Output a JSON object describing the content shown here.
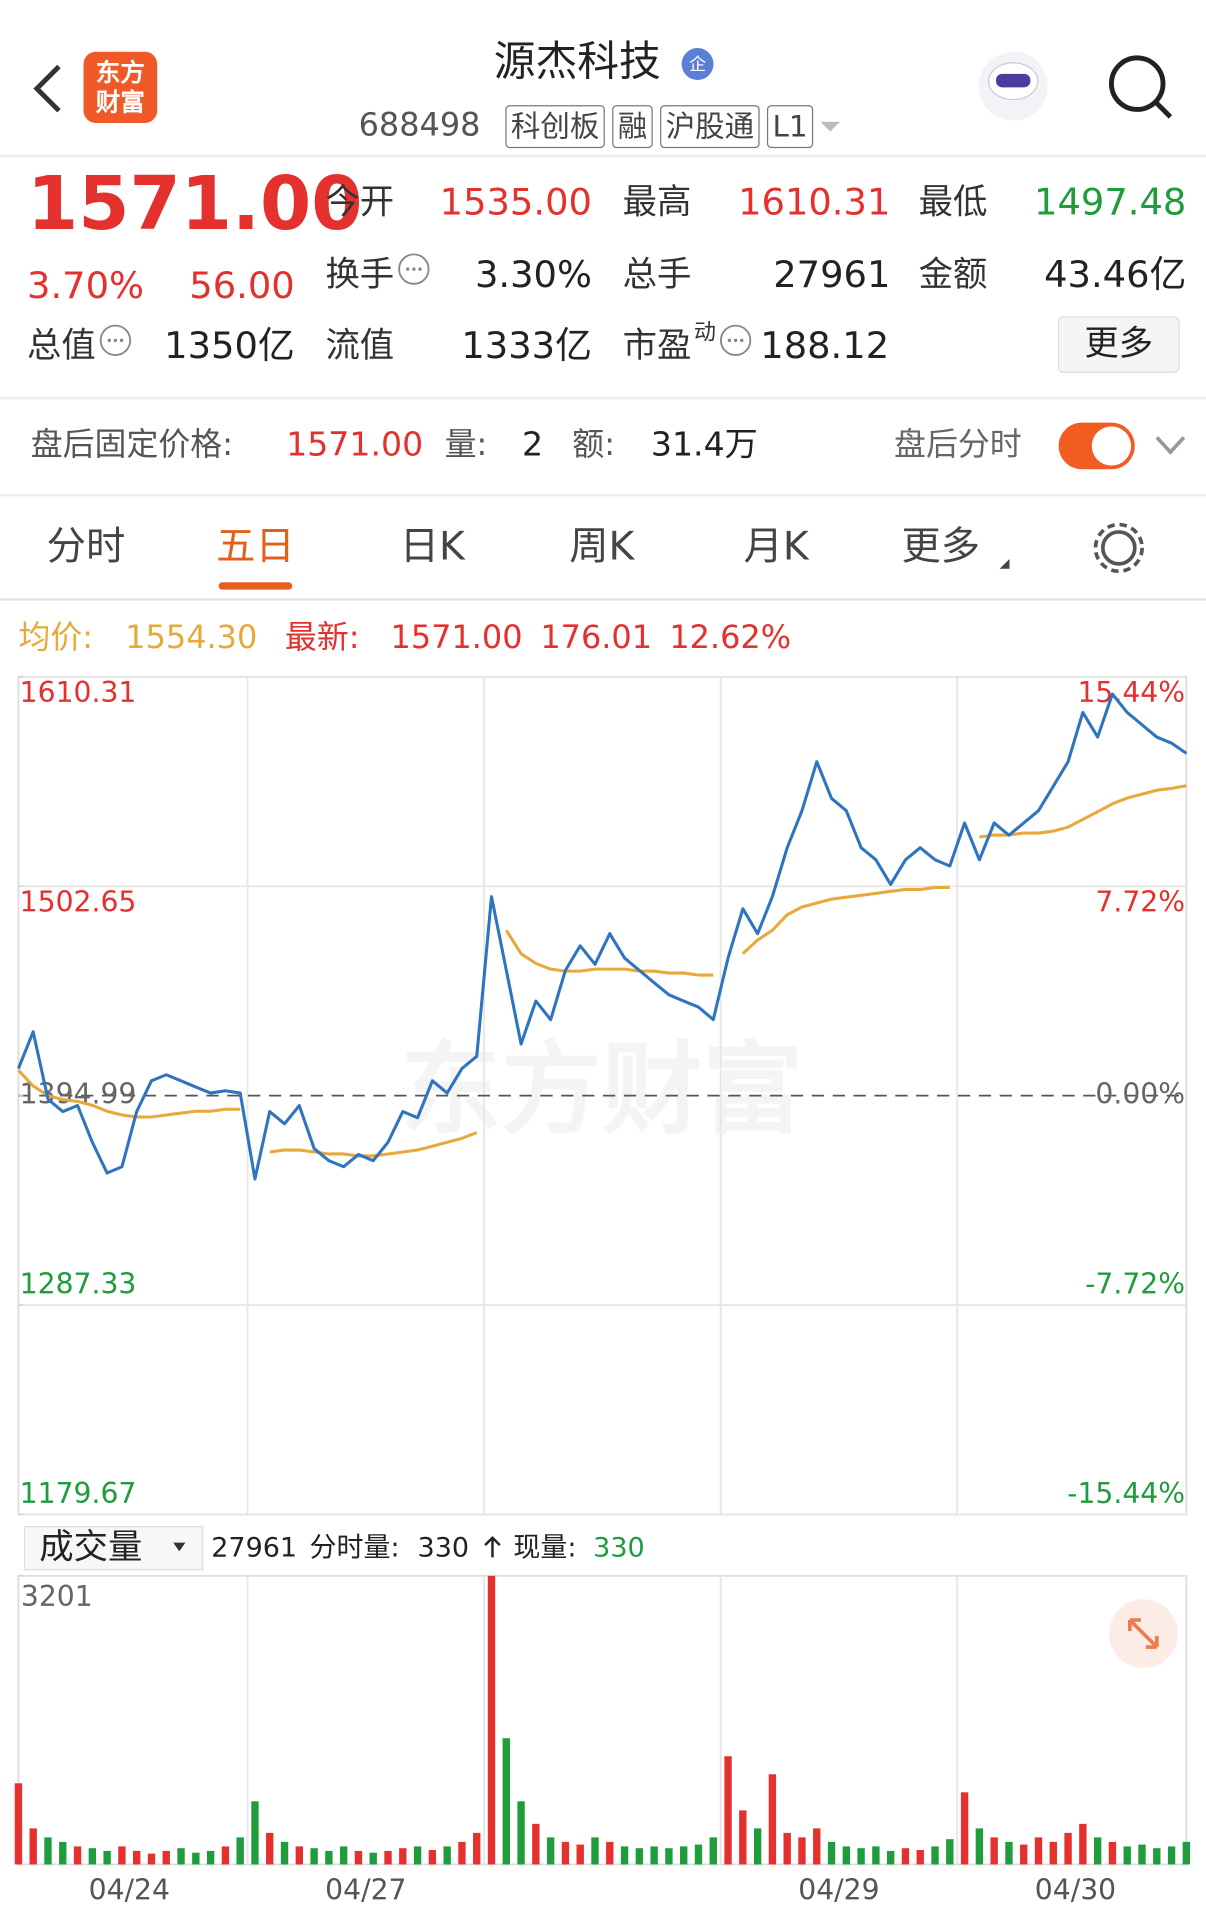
{
  "header": {
    "logo": [
      "东方",
      "财富"
    ],
    "name": "源杰科技",
    "badge": "企",
    "code": "688498",
    "tags": [
      "科创板",
      "融",
      "沪股通",
      "L1"
    ]
  },
  "quote": {
    "price": "1571.00",
    "change_pct": "3.70%",
    "change": "56.00",
    "more": "更多",
    "stats": [
      {
        "label": "今开",
        "value": "1535.00",
        "color": "#e4312e"
      },
      {
        "label": "最高",
        "value": "1610.31",
        "color": "#e4312e"
      },
      {
        "label": "最低",
        "value": "1497.48",
        "color": "#1f9c3c"
      },
      {
        "label": "换手",
        "value": "3.30%",
        "color": "#222",
        "info": true
      },
      {
        "label": "总手",
        "value": "27961",
        "color": "#222"
      },
      {
        "label": "金额",
        "value": "43.46亿",
        "color": "#222"
      },
      {
        "label": "总值",
        "value": "1350亿",
        "color": "#222",
        "info": true
      },
      {
        "label": "流值",
        "value": "1333亿",
        "color": "#222"
      },
      {
        "label": "市盈",
        "sup": "动",
        "value": "188.12",
        "color": "#222",
        "info": true
      }
    ]
  },
  "after_hours": {
    "label": "盘后固定价格:",
    "price": "1571.00",
    "vol_label": "量:",
    "vol": "2",
    "amount_label": "额:",
    "amount": "31.4万",
    "toggle_label": "盘后分时"
  },
  "tabs": [
    {
      "label": "分时"
    },
    {
      "label": "五日",
      "active": true
    },
    {
      "label": "日K"
    },
    {
      "label": "周K"
    },
    {
      "label": "月K"
    },
    {
      "label": "更多"
    }
  ],
  "chart_data": [
    {
      "type": "line",
      "watermark": "东方财富",
      "legend": {
        "avg_label": "均价:",
        "avg_value": "1554.30",
        "latest_label": "最新:",
        "latest_values": [
          "1571.00",
          "176.01",
          "12.62%"
        ]
      },
      "up_color": "#e4312e",
      "down_color": "#1f9c3c",
      "flat_color": "#666",
      "x": [
        0,
        1,
        2,
        3,
        4,
        5,
        6,
        7,
        8,
        9,
        10,
        11,
        12,
        13,
        14,
        15,
        16,
        17,
        18,
        19,
        20,
        21,
        22,
        23,
        24,
        25,
        26,
        27,
        28,
        29,
        30,
        31,
        32,
        33,
        34,
        35,
        36,
        37,
        38,
        39,
        40,
        41,
        42,
        43,
        44,
        45,
        46,
        47,
        48,
        49,
        50,
        51,
        52,
        53,
        54,
        55,
        56,
        57,
        58,
        59,
        60,
        61,
        62,
        63,
        64,
        65,
        66,
        67,
        68,
        69,
        70,
        71,
        72,
        73,
        74,
        75,
        76,
        77,
        78,
        79
      ],
      "xlim": [
        0,
        79
      ],
      "xgrid": [
        15.5,
        31.5,
        47.5,
        63.5
      ],
      "ylim": [
        1179.67,
        1610.31
      ],
      "yticks": [
        1610.31,
        1502.65,
        1394.99,
        1287.33,
        1179.67
      ],
      "y2lim": [
        -15.44,
        15.44
      ],
      "y2ticks": [
        {
          "value": 15.44,
          "label": "15.44%"
        },
        {
          "value": 7.72,
          "label": "7.72%"
        },
        {
          "value": 0,
          "label": "0.00%"
        },
        {
          "value": -7.72,
          "label": "-7.72%"
        },
        {
          "value": -15.44,
          "label": "-15.44%"
        }
      ],
      "series": [
        {
          "color": "#2f74c0",
          "values": [
            1408.9,
            1427.8,
            1393.1,
            1386.8,
            1389.9,
            1371.0,
            1355.2,
            1358.4,
            1386.8,
            1402.6,
            1405.7,
            1402.6,
            1399.4,
            1396.3,
            1397.5,
            1396.3,
            1352.1,
            1386.8,
            1380.5,
            1389.9,
            1367.8,
            1361.5,
            1358.4,
            1364.7,
            1361.5,
            1371.0,
            1386.8,
            1383.6,
            1402.6,
            1396.3,
            1408.9,
            1415.2,
            1497.3,
            1459.4,
            1421.5,
            1443.6,
            1434.1,
            1459.4,
            1472.0,
            1462.5,
            1478.3,
            1465.7,
            1459.4,
            1453.1,
            1446.8,
            1443.6,
            1440.5,
            1434.1,
            1465.7,
            1491.0,
            1478.3,
            1497.3,
            1522.5,
            1541.5,
            1566.7,
            1547.8,
            1541.5,
            1522.5,
            1516.2,
            1503.6,
            1516.2,
            1522.5,
            1516.2,
            1513.1,
            1535.2,
            1516.2,
            1535.2,
            1528.9,
            1535.2,
            1541.5,
            1554.1,
            1566.7,
            1592.0,
            1579.4,
            1601.5,
            1592.0,
            1585.7,
            1579.4,
            1576.2,
            1571.0
          ]
        },
        {
          "color": "#e8a93a",
          "values": [
            1408,
            1400,
            1395,
            1393,
            1392,
            1390,
            1387,
            1385,
            1384,
            1384,
            1385,
            1386,
            1387,
            1387,
            1388,
            1388,
            null,
            1366,
            1367,
            1367,
            1366,
            1365,
            1365,
            1364,
            1364,
            1365,
            1366,
            1367,
            1369,
            1371,
            1373,
            1376,
            null,
            1480,
            1468,
            1463,
            1460,
            1459,
            1459,
            1460,
            1460,
            1460,
            1459,
            1459,
            1458,
            1458,
            1457,
            1457,
            null,
            1468,
            1475,
            1480,
            1488,
            1492,
            1494,
            1496,
            1497,
            1498,
            1499,
            1500,
            1501,
            1501,
            1502,
            1502,
            null,
            1528,
            1529,
            1529,
            1530,
            1530,
            1531,
            1533,
            1537,
            1541,
            1545,
            1548,
            1550,
            1552,
            1553,
            1554.3
          ]
        }
      ]
    },
    {
      "type": "bar",
      "title": "成交量",
      "total": "27961",
      "tick_label": "分时量:",
      "tick_value": "330",
      "now_label": "现量:",
      "now_value": "330",
      "up_color": "#e4312e",
      "down_color": "#1f9c3c",
      "x": [
        0,
        1,
        2,
        3,
        4,
        5,
        6,
        7,
        8,
        9,
        10,
        11,
        12,
        13,
        14,
        15,
        16,
        17,
        18,
        19,
        20,
        21,
        22,
        23,
        24,
        25,
        26,
        27,
        28,
        29,
        30,
        31,
        32,
        33,
        34,
        35,
        36,
        37,
        38,
        39,
        40,
        41,
        42,
        43,
        44,
        45,
        46,
        47,
        48,
        49,
        50,
        51,
        52,
        53,
        54,
        55,
        56,
        57,
        58,
        59,
        60,
        61,
        62,
        63,
        64,
        65,
        66,
        67,
        68,
        69,
        70,
        71,
        72,
        73,
        74,
        75,
        76,
        77,
        78,
        79
      ],
      "xlim": [
        0,
        79
      ],
      "xgrid": [
        15.5,
        31.5,
        47.5,
        63.5
      ],
      "xticks": [
        {
          "value": 7.5,
          "label": "04/24"
        },
        {
          "value": 23.5,
          "label": "04/27"
        },
        {
          "value": 55.5,
          "label": "04/29"
        },
        {
          "value": 71.5,
          "label": "04/30"
        }
      ],
      "ylim": [
        0,
        3201
      ],
      "yticks": [
        3201
      ],
      "values": [
        900,
        400,
        300,
        250,
        200,
        180,
        150,
        200,
        150,
        120,
        150,
        180,
        130,
        150,
        200,
        300,
        700,
        350,
        250,
        200,
        180,
        150,
        200,
        150,
        130,
        150,
        180,
        200,
        160,
        200,
        250,
        350,
        3201,
        1400,
        700,
        450,
        300,
        250,
        220,
        300,
        250,
        200,
        180,
        200,
        180,
        200,
        220,
        300,
        1200,
        600,
        400,
        1000,
        350,
        300,
        400,
        250,
        200,
        180,
        200,
        150,
        180,
        160,
        200,
        280,
        800,
        400,
        300,
        250,
        220,
        300,
        250,
        350,
        450,
        300,
        250,
        200,
        220,
        180,
        200,
        250
      ]
    }
  ]
}
